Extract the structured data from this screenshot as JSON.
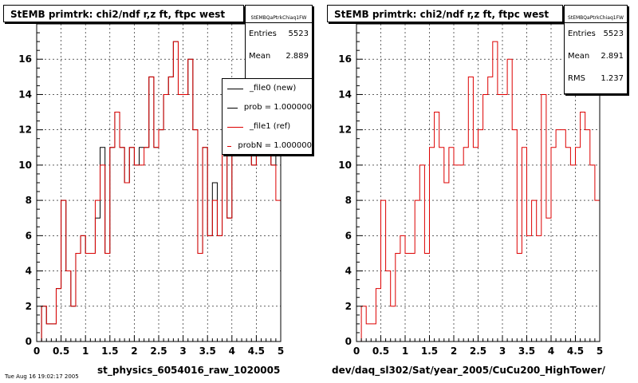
{
  "panels": [
    {
      "title": "StEMB primtrk: chi2/ndf r,z ft, ftpc west",
      "stats": {
        "name": "StEMBQaPtrkChiaq1FW",
        "rows": [
          {
            "label": "Entries",
            "value": "5523"
          },
          {
            "label": "Mean",
            "value": "2.889"
          }
        ]
      },
      "xfile_label": "st_physics_6054016_raw_1020005",
      "legend": [
        {
          "label": "_file0 (new)",
          "color": "#000000"
        },
        {
          "label": "prob = 1.000000",
          "color": "#000000"
        },
        {
          "label": "_file1 (ref)",
          "color": "#dd0000"
        },
        {
          "label": "probN = 1.000000",
          "color": "#dd0000"
        }
      ]
    },
    {
      "title": "StEMB primtrk: chi2/ndf r,z ft, ftpc west",
      "stats": {
        "name": "StEMBQaPtrkChiaq1FW",
        "rows": [
          {
            "label": "Entries",
            "value": "5523"
          },
          {
            "label": "Mean",
            "value": "2.891"
          },
          {
            "label": "RMS",
            "value": "1.237"
          }
        ]
      },
      "xfile_label": "dev/daq_sl302/Sat/year_2005/CuCu200_HighTower/"
    }
  ],
  "footer_stamp": "Tue Aug 16 19:02:17 2005",
  "chart_data": [
    {
      "type": "histogram",
      "title": "StEMB primtrk: chi2/ndf r,z ft, ftpc west",
      "xlabel": "",
      "ylabel": "",
      "xlim": [
        0,
        5
      ],
      "ylim": [
        0,
        18
      ],
      "bin_width": 0.1,
      "x_ticks": [
        "0",
        "0.5",
        "1",
        "1.5",
        "2",
        "2.5",
        "3",
        "3.5",
        "4",
        "4.5",
        "5"
      ],
      "y_ticks": [
        "0",
        "2",
        "4",
        "6",
        "8",
        "10",
        "12",
        "14",
        "16"
      ],
      "grid": true,
      "series": [
        {
          "name": "_file0 (new)",
          "color": "#000000",
          "values": [
            0,
            2,
            1,
            1,
            3,
            8,
            4,
            2,
            5,
            6,
            5,
            5,
            7,
            11,
            5,
            11,
            13,
            11,
            9,
            11,
            10,
            11,
            11,
            15,
            11,
            12,
            14,
            15,
            17,
            14,
            14,
            16,
            12,
            5,
            11,
            6,
            9,
            6,
            14,
            7,
            11,
            12,
            12,
            11,
            10,
            11,
            13,
            12,
            10,
            11
          ]
        },
        {
          "name": "_file1 (ref)",
          "color": "#dd0000",
          "values": [
            0,
            2,
            1,
            1,
            3,
            8,
            4,
            2,
            5,
            6,
            5,
            5,
            8,
            10,
            5,
            11,
            13,
            11,
            9,
            11,
            10,
            10,
            11,
            15,
            11,
            12,
            14,
            15,
            17,
            14,
            14,
            16,
            12,
            5,
            11,
            6,
            8,
            6,
            14,
            7,
            11,
            12,
            12,
            11,
            10,
            11,
            13,
            12,
            10,
            8
          ]
        }
      ]
    },
    {
      "type": "histogram",
      "title": "StEMB primtrk: chi2/ndf r,z ft, ftpc west",
      "xlabel": "",
      "ylabel": "",
      "xlim": [
        0,
        5
      ],
      "ylim": [
        0,
        18
      ],
      "bin_width": 0.1,
      "x_ticks": [
        "0",
        "0.5",
        "1",
        "1.5",
        "2",
        "2.5",
        "3",
        "3.5",
        "4",
        "4.5",
        "5"
      ],
      "y_ticks": [
        "0",
        "2",
        "4",
        "6",
        "8",
        "10",
        "12",
        "14",
        "16"
      ],
      "grid": true,
      "series": [
        {
          "name": "_file1 (ref)",
          "color": "#dd0000",
          "values": [
            0,
            2,
            1,
            1,
            3,
            8,
            4,
            2,
            5,
            6,
            5,
            5,
            8,
            10,
            5,
            11,
            13,
            11,
            9,
            11,
            10,
            10,
            11,
            15,
            11,
            12,
            14,
            15,
            17,
            14,
            14,
            16,
            12,
            5,
            11,
            6,
            8,
            6,
            14,
            7,
            11,
            12,
            12,
            11,
            10,
            11,
            13,
            12,
            10,
            8
          ]
        }
      ]
    }
  ]
}
